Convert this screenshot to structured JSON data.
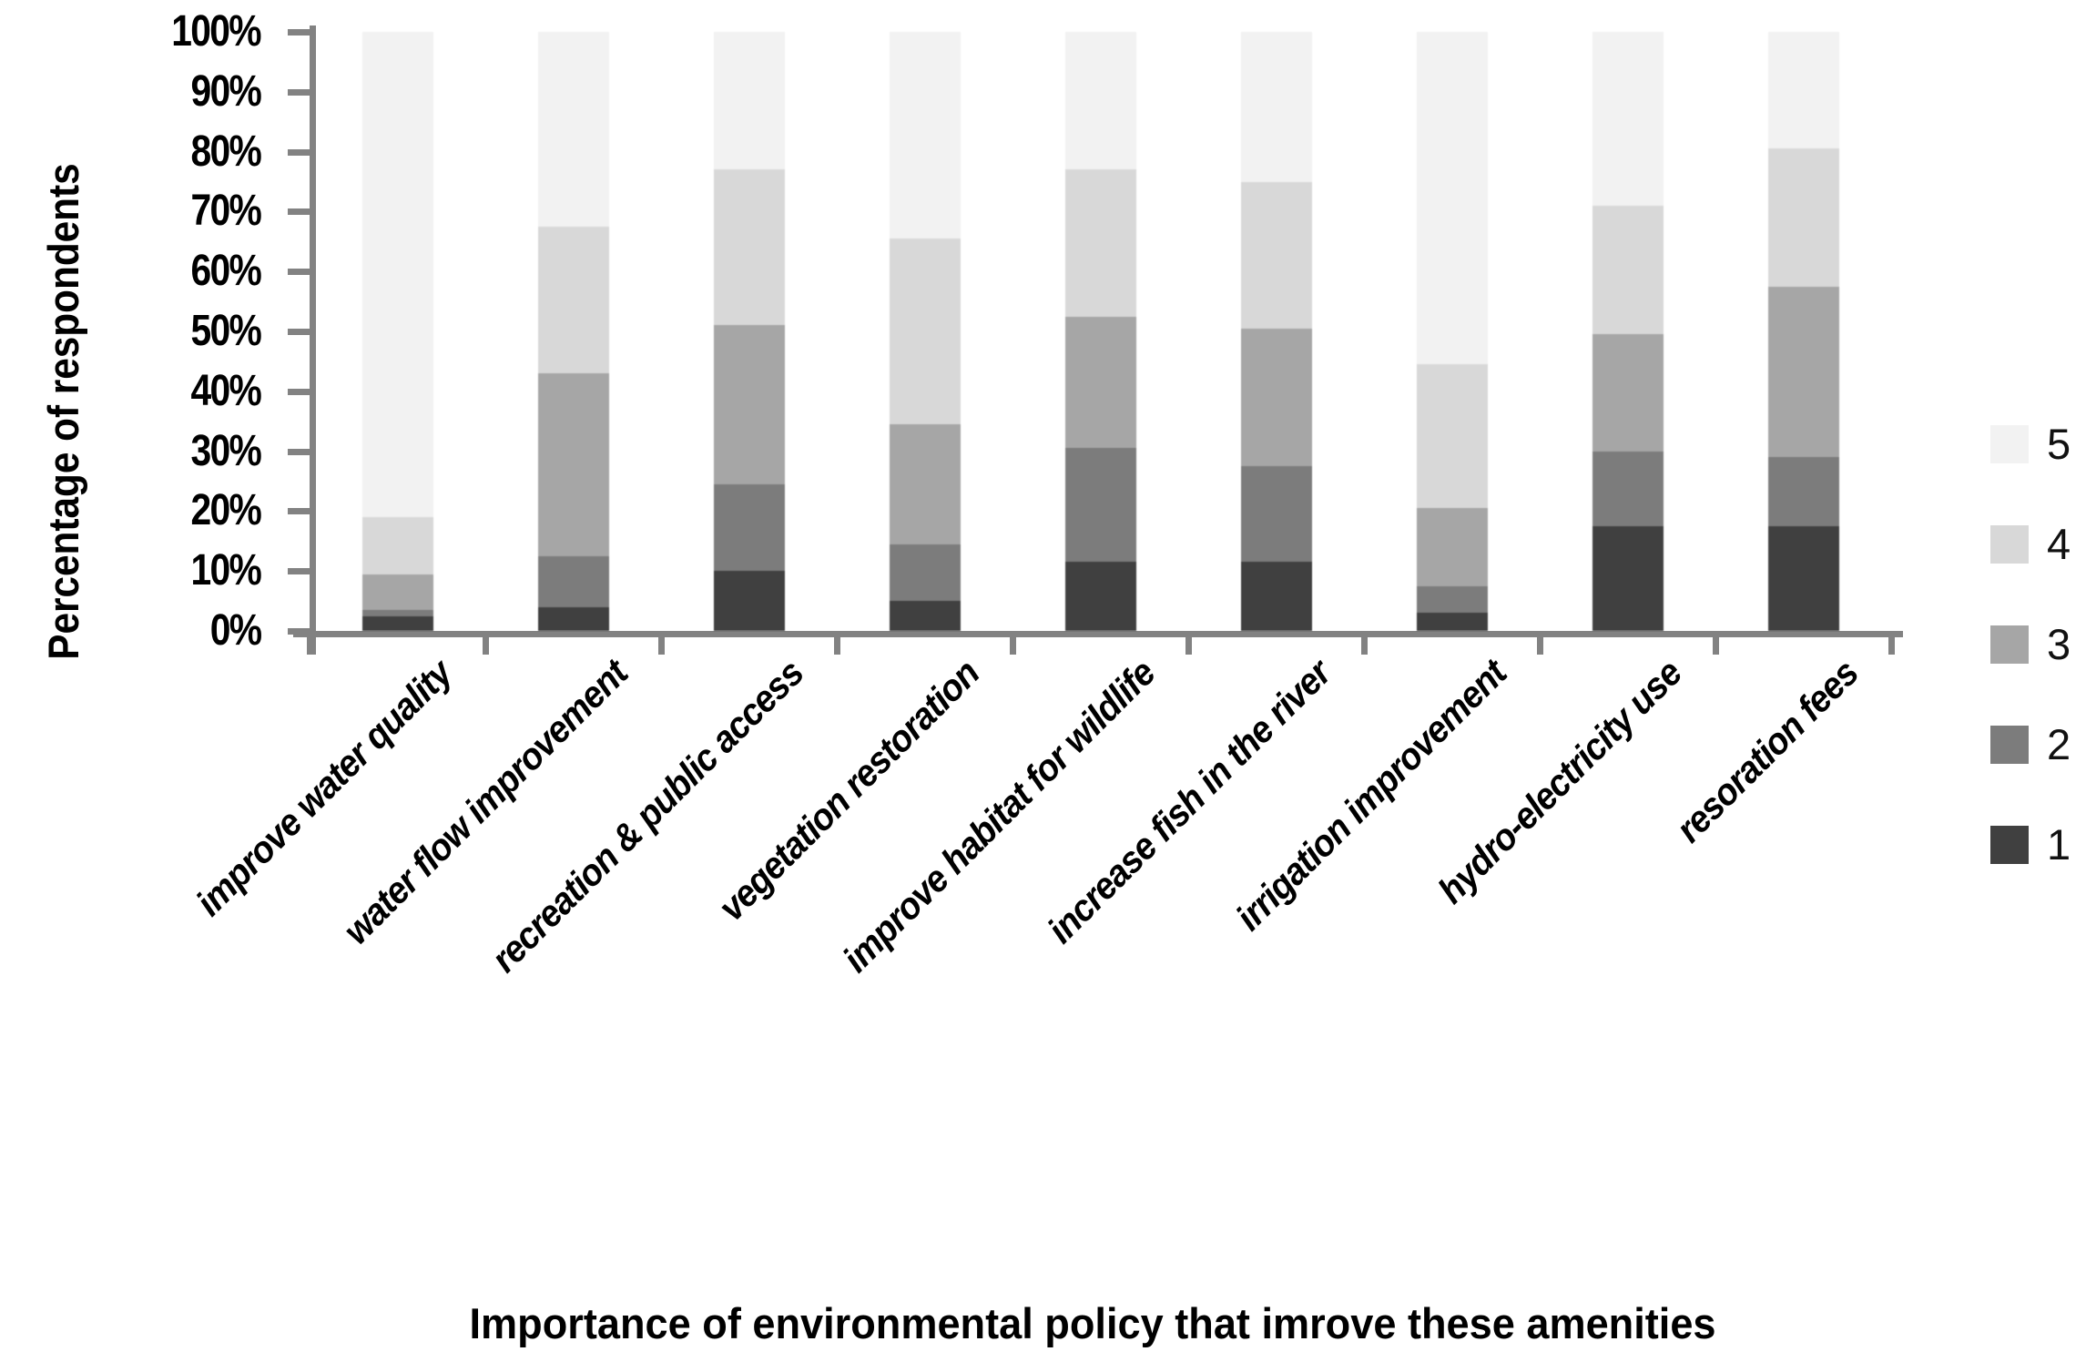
{
  "chart_data": {
    "type": "bar",
    "stacked": true,
    "stacked_mode": "percent",
    "title": "",
    "xlabel": "Importance of environmental policy that imrove these amenities",
    "ylabel": "Percentage of respondents",
    "categories": [
      "improve water quality",
      "water flow improvement",
      "recreation & public access",
      "vegetation restoration",
      "improve habitat for wildlife",
      "increase fish in the river",
      "irrigation improvement",
      "hydro-electricity use",
      "resoration fees"
    ],
    "series": [
      {
        "name": "1",
        "color": "#404040",
        "values": [
          2.5,
          4,
          10,
          5,
          11.5,
          11.5,
          3,
          17.5,
          17.5
        ]
      },
      {
        "name": "2",
        "color": "#7c7c7c",
        "values": [
          1,
          8.5,
          14.5,
          9.5,
          19,
          16,
          4.5,
          12.5,
          11.5
        ]
      },
      {
        "name": "3",
        "color": "#a6a6a6",
        "values": [
          6,
          30.5,
          26.5,
          20,
          22,
          23,
          13,
          19.5,
          28.5
        ]
      },
      {
        "name": "4",
        "color": "#d8d8d8",
        "values": [
          9.5,
          24.5,
          26,
          31,
          24.5,
          24.5,
          24,
          21.5,
          23
        ]
      },
      {
        "name": "5",
        "color": "#f2f2f2",
        "values": [
          81,
          32.5,
          23,
          34.5,
          23,
          25,
          55.5,
          29,
          19.5
        ]
      }
    ],
    "y_ticks": [
      "100%",
      "90%",
      "80%",
      "70%",
      "60%",
      "50%",
      "40%",
      "30%",
      "20%",
      "10%",
      "0%"
    ],
    "ylim": [
      0,
      100
    ],
    "grid": false,
    "legend": {
      "position": "right",
      "items": [
        {
          "label": "5",
          "color": "#f2f2f2"
        },
        {
          "label": "4",
          "color": "#d8d8d8"
        },
        {
          "label": "3",
          "color": "#a6a6a6"
        },
        {
          "label": "2",
          "color": "#7c7c7c"
        },
        {
          "label": "1",
          "color": "#404040"
        }
      ]
    }
  },
  "colors": {
    "background": "#ffffff",
    "axis": "#828282",
    "text": "#000000"
  }
}
